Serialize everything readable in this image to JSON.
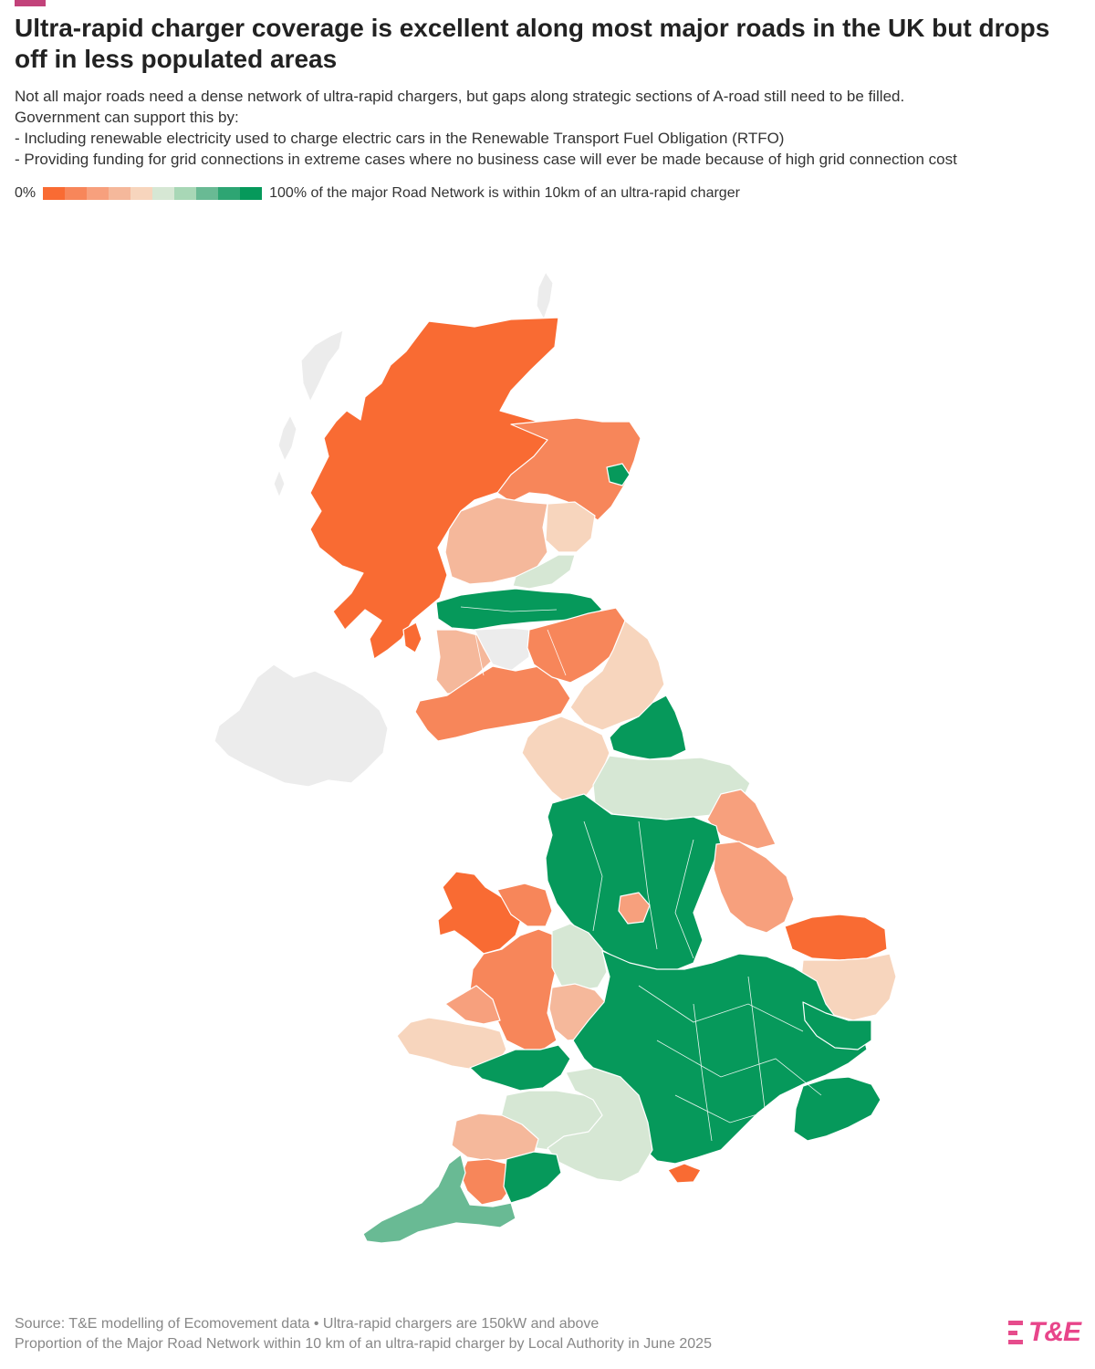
{
  "header": {
    "title": "Ultra-rapid charger coverage is excellent along most major roads in the UK but drops off in less populated areas",
    "subtitle_lines": [
      "Not all major roads need a dense network of ultra-rapid chargers, but gaps along strategic sections of A-road still need to be filled.",
      "Government can support this by:",
      "- Including renewable electricity used to charge electric cars in the Renewable Transport Fuel Obligation (RTFO)",
      "- Providing funding for grid connections in extreme cases where no business case will ever be made because of high grid connection cost"
    ]
  },
  "legend": {
    "min_label": "0%",
    "max_label": "100% of the major Road Network is within 10km of an ultra-rapid charger",
    "colors": [
      "#f96b33",
      "#f7865a",
      "#f7a07d",
      "#f5b89b",
      "#f7d5bd",
      "#d6e7d4",
      "#a8d7b6",
      "#69ba94",
      "#2ea573",
      "#06995b"
    ]
  },
  "colors": {
    "accent": "#c2427a",
    "no_data": "#ececec",
    "brand": "#e8458a"
  },
  "map": {
    "regions": [
      {
        "name": "Scottish Highlands",
        "coverage_pct": 0
      },
      {
        "name": "Aberdeenshire",
        "coverage_pct": 15
      },
      {
        "name": "Aberdeen City",
        "coverage_pct": 100
      },
      {
        "name": "Perth and Kinross",
        "coverage_pct": 30
      },
      {
        "name": "Angus",
        "coverage_pct": 40
      },
      {
        "name": "Fife",
        "coverage_pct": 55
      },
      {
        "name": "Central Belt",
        "coverage_pct": 100
      },
      {
        "name": "Argyll and Bute",
        "coverage_pct": 0
      },
      {
        "name": "Dumfries and Galloway",
        "coverage_pct": 15
      },
      {
        "name": "Scottish Borders",
        "coverage_pct": 15
      },
      {
        "name": "Northumberland",
        "coverage_pct": 40
      },
      {
        "name": "Cumbria",
        "coverage_pct": 40
      },
      {
        "name": "North East England",
        "coverage_pct": 100
      },
      {
        "name": "North Yorkshire",
        "coverage_pct": 55
      },
      {
        "name": "East Riding of Yorkshire",
        "coverage_pct": 25
      },
      {
        "name": "Lincolnshire",
        "coverage_pct": 20
      },
      {
        "name": "North West and Midlands",
        "coverage_pct": 100
      },
      {
        "name": "Peak District",
        "coverage_pct": 20
      },
      {
        "name": "Norfolk",
        "coverage_pct": 0
      },
      {
        "name": "Suffolk",
        "coverage_pct": 40
      },
      {
        "name": "Anglesey and Gwynedd",
        "coverage_pct": 0
      },
      {
        "name": "Powys",
        "coverage_pct": 15
      },
      {
        "name": "Shropshire",
        "coverage_pct": 55
      },
      {
        "name": "Herefordshire",
        "coverage_pct": 30
      },
      {
        "name": "Pembrokeshire",
        "coverage_pct": 40
      },
      {
        "name": "South Wales",
        "coverage_pct": 100
      },
      {
        "name": "South East England",
        "coverage_pct": 100
      },
      {
        "name": "Wiltshire and Dorset",
        "coverage_pct": 55
      },
      {
        "name": "Somerset",
        "coverage_pct": 55
      },
      {
        "name": "North Devon",
        "coverage_pct": 30
      },
      {
        "name": "Devon",
        "coverage_pct": 15
      },
      {
        "name": "Cornwall",
        "coverage_pct": 70
      },
      {
        "name": "Isle of Wight",
        "coverage_pct": 0
      },
      {
        "name": "Kent",
        "coverage_pct": 100
      },
      {
        "name": "Essex",
        "coverage_pct": 100
      },
      {
        "name": "Northern Ireland",
        "coverage_pct": null
      },
      {
        "name": "Western Isles",
        "coverage_pct": null
      },
      {
        "name": "Shetland and Orkney",
        "coverage_pct": null
      }
    ]
  },
  "footer": {
    "source": "Source: T&E modelling of Ecomovement data • Ultra-rapid chargers are 150kW and above",
    "note": "Proportion of the Major Road Network within 10 km of an ultra-rapid charger by Local Authority in June 2025",
    "logo_text": "T&E"
  }
}
